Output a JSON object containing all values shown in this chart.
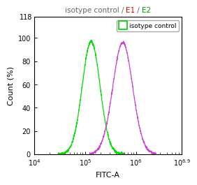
{
  "xlabel": "FITC-A",
  "ylabel": "Count (%)",
  "xlim_log_min": 4,
  "xlim_log_max": 6.9,
  "ylim_min": 0,
  "ylim_max": 118,
  "yticks": [
    0,
    20,
    40,
    60,
    80,
    100
  ],
  "ytick_top": 118,
  "xticks_major": [
    10000.0,
    100000.0,
    1000000.0
  ],
  "xtick_extra_exp": 6.9,
  "legend_label": "isotype control",
  "curve1_color": "#00dd00",
  "curve2_color": "#cc44cc",
  "curve1_peak_log": 5.12,
  "curve1_peak_y": 97,
  "curve1_sigma": 0.175,
  "curve2_peak_log": 5.74,
  "curve2_peak_y": 96,
  "curve2_sigma": 0.195,
  "title_part1": "isotype control / ",
  "title_part1_color": "#666666",
  "title_part2": "E1",
  "title_part2_color": "#dd0000",
  "title_part3": " / ",
  "title_part3_color": "#666666",
  "title_part4": "E2",
  "title_part4_color": "#009900",
  "title_fontsize": 7.5,
  "legend_line_color": "#00cc00",
  "legend_fontsize": 6.5,
  "tick_fontsize": 7,
  "label_fontsize": 8,
  "linewidth": 0.9,
  "background_color": "#ffffff"
}
